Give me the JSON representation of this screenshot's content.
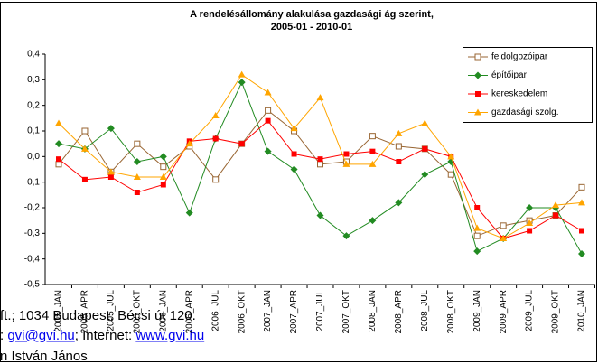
{
  "chart_data": {
    "type": "line",
    "title": "A rendelésállomány alakulása gazdasági ág szerint,",
    "subtitle": "2005-01 - 2010-01",
    "categories": [
      "2005_JAN",
      "2005_APR",
      "2005_JUL",
      "2005_OKT",
      "2006_JAN",
      "2006_APR",
      "2006_JUL",
      "2006_OKT",
      "2007_JAN",
      "2007_APR",
      "2007_JUL",
      "2007_OKT",
      "2008_JAN",
      "2008_APR",
      "2008_JUL",
      "2008_OKT",
      "2009_JAN",
      "2009_APR",
      "2009_JUL",
      "2009_OKT",
      "2010_JAN"
    ],
    "series": [
      {
        "name": "feldolgozóipar",
        "color": "#996633",
        "marker": "square-open",
        "values": [
          -0.03,
          0.1,
          -0.06,
          0.05,
          -0.04,
          0.04,
          -0.09,
          0.05,
          0.18,
          0.1,
          -0.03,
          -0.02,
          0.08,
          0.04,
          0.03,
          -0.07,
          -0.31,
          -0.27,
          -0.25,
          -0.23,
          -0.12
        ]
      },
      {
        "name": "építőipar",
        "color": "#228b22",
        "marker": "diamond",
        "values": [
          0.05,
          0.03,
          0.11,
          -0.02,
          0.0,
          -0.22,
          0.07,
          0.29,
          0.02,
          -0.05,
          -0.23,
          -0.31,
          -0.25,
          -0.18,
          -0.07,
          -0.02,
          -0.37,
          -0.32,
          -0.2,
          -0.2,
          -0.38
        ]
      },
      {
        "name": "kereskedelem",
        "color": "#ff0000",
        "marker": "square",
        "values": [
          -0.01,
          -0.09,
          -0.08,
          -0.14,
          -0.11,
          0.06,
          0.07,
          0.05,
          0.14,
          0.01,
          -0.01,
          0.01,
          0.02,
          -0.02,
          0.03,
          0.0,
          -0.2,
          -0.32,
          -0.29,
          -0.23,
          -0.29
        ]
      },
      {
        "name": "gazdasági szolg.",
        "color": "#ffa500",
        "marker": "triangle",
        "values": [
          0.13,
          0.03,
          -0.06,
          -0.08,
          -0.08,
          0.05,
          0.16,
          0.32,
          0.25,
          0.11,
          0.23,
          -0.03,
          -0.03,
          0.09,
          0.13,
          0.0,
          -0.28,
          -0.32,
          -0.26,
          -0.19,
          -0.18
        ]
      }
    ],
    "ylim": [
      -0.5,
      0.4
    ],
    "yticks": [
      {
        "value": 0.4,
        "label": "0,4"
      },
      {
        "value": 0.3,
        "label": "0,3"
      },
      {
        "value": 0.2,
        "label": "0,2"
      },
      {
        "value": 0.1,
        "label": "0,1"
      },
      {
        "value": 0,
        "label": "0,0"
      },
      {
        "value": -0.1,
        "label": "-0,1"
      },
      {
        "value": -0.2,
        "label": "-0,2"
      },
      {
        "value": -0.3,
        "label": "-0,3"
      },
      {
        "value": -0.4,
        "label": "-0,4"
      },
      {
        "value": -0.5,
        "label": "-0,5"
      }
    ],
    "grid": false,
    "legend": "upper right"
  },
  "footer": {
    "line1": "ft.; 1034 Budapest, Bécsi út 120.",
    "line2_prefix": ":",
    "email": "gvi@gvi.hu",
    "line2_mid": "; Internet:",
    "web": "www.gvi.hu",
    "line3": "n István János"
  }
}
